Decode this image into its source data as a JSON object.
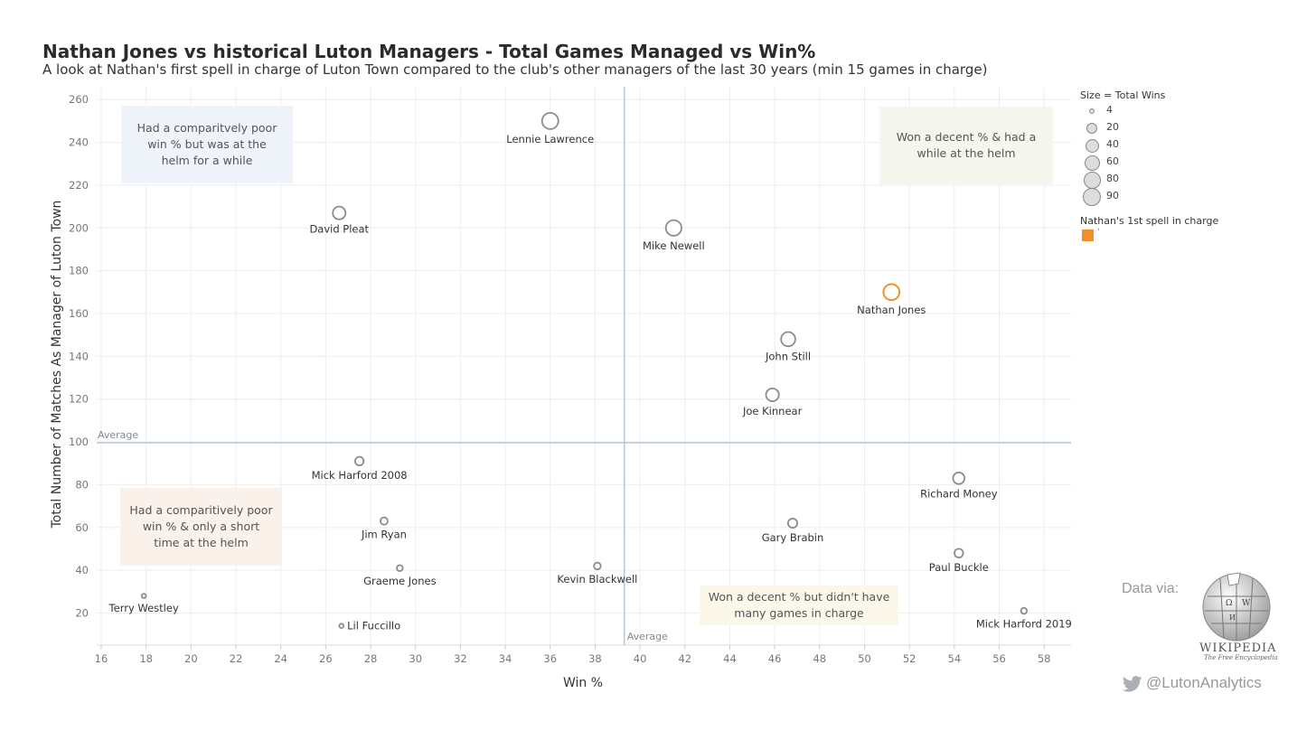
{
  "title": "Nathan Jones vs historical Luton Managers - Total Games Managed vs Win%",
  "subtitle": "A look at Nathan's first spell in charge of Luton Town compared to the club's other managers of the last 30 years (min 15 games in charge)",
  "chart_data": {
    "type": "scatter",
    "xlabel": "Win %",
    "ylabel": "Total Number of Matches As Manager of Luton Town",
    "xlim": [
      15.8,
      59.2
    ],
    "ylim": [
      5,
      266
    ],
    "xticks": [
      16,
      18,
      20,
      22,
      24,
      26,
      28,
      30,
      32,
      34,
      36,
      38,
      40,
      42,
      44,
      46,
      48,
      50,
      52,
      54,
      56,
      58
    ],
    "yticks": [
      20,
      40,
      60,
      80,
      100,
      120,
      140,
      160,
      180,
      200,
      220,
      240,
      260
    ],
    "grid": true,
    "reference_lines": [
      {
        "axis": "y",
        "value": 99.6,
        "label": "Average"
      },
      {
        "axis": "x",
        "value": 39.3,
        "label": "Average"
      }
    ],
    "points": [
      {
        "name": "Lennie Lawrence",
        "x": 36.0,
        "y": 250,
        "wins": 90,
        "highlight": false
      },
      {
        "name": "David Pleat",
        "x": 26.6,
        "y": 207,
        "wins": 55,
        "highlight": false
      },
      {
        "name": "Mike Newell",
        "x": 41.5,
        "y": 200,
        "wins": 83,
        "highlight": false
      },
      {
        "name": "Nathan Jones",
        "x": 51.2,
        "y": 170,
        "wins": 87,
        "highlight": true
      },
      {
        "name": "John Still",
        "x": 46.6,
        "y": 148,
        "wins": 69,
        "highlight": false
      },
      {
        "name": "Joe Kinnear",
        "x": 45.9,
        "y": 122,
        "wins": 56,
        "highlight": false
      },
      {
        "name": "Mick Harford 2008",
        "x": 27.5,
        "y": 91,
        "wins": 25,
        "highlight": false
      },
      {
        "name": "Richard Money",
        "x": 54.2,
        "y": 83,
        "wins": 45,
        "highlight": false
      },
      {
        "name": "Jim Ryan",
        "x": 28.6,
        "y": 63,
        "wins": 18,
        "highlight": false
      },
      {
        "name": "Gary Brabin",
        "x": 46.8,
        "y": 62,
        "wins": 29,
        "highlight": false
      },
      {
        "name": "Paul Buckle",
        "x": 54.2,
        "y": 48,
        "wins": 26,
        "highlight": false
      },
      {
        "name": "Graeme Jones",
        "x": 29.3,
        "y": 41,
        "wins": 12,
        "highlight": false
      },
      {
        "name": "Kevin Blackwell",
        "x": 38.1,
        "y": 42,
        "wins": 16,
        "highlight": false
      },
      {
        "name": "Terry Westley",
        "x": 17.9,
        "y": 28,
        "wins": 5,
        "highlight": false
      },
      {
        "name": "Mick Harford 2019",
        "x": 57.1,
        "y": 21,
        "wins": 12,
        "highlight": false
      },
      {
        "name": "Lil Fuccillo",
        "x": 26.7,
        "y": 14,
        "wins": 4,
        "highlight": false
      }
    ],
    "quadrant_notes": [
      {
        "text": "Had a comparitvely poor win % but was at the helm for a while",
        "fill": "#eef4f9"
      },
      {
        "text": "Won a decent % & had a while at the helm",
        "fill": "#f5f7ee"
      },
      {
        "text": "Had a comparitively poor win % & only a short time at the helm",
        "fill": "#f9f1ea"
      },
      {
        "text": "Won a decent % but didn't have many games in charge",
        "fill": "#fbf8e9"
      }
    ],
    "colors": {
      "point_stroke": "#8c8c8c",
      "highlight": "#f28e2b",
      "average_line": "#b8c9d8",
      "grid": "#eeeeee"
    }
  },
  "legend": {
    "size_title": "Size = Total Wins",
    "size_values": [
      "4",
      "20",
      "40",
      "60",
      "80",
      "90"
    ],
    "highlight_title": "Nathan's 1st spell in charge",
    "highlight_value": "'"
  },
  "footer": {
    "credit": "Data via:",
    "wikipedia": "WIKIPEDIA",
    "wikipedia_tagline": "The Free Encyclopedia",
    "twitter_handle": "@LutonAnalytics",
    "twitter_icon": "twitter-bird-icon",
    "globe_icon": "wikipedia-globe-icon"
  }
}
